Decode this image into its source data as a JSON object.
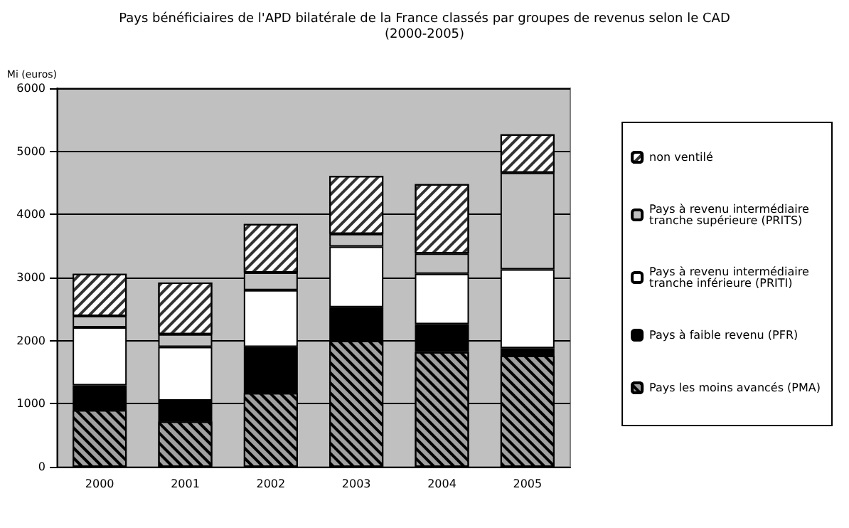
{
  "chart_data": {
    "type": "bar",
    "stacked": true,
    "title": "Pays bénéficiaires de l'APD bilatérale de la France classés par groupes de revenus selon le CAD",
    "subtitle": "(2000-2005)",
    "ylabel": "Mi (euros)",
    "categories": [
      "2000",
      "2001",
      "2002",
      "2003",
      "2004",
      "2005"
    ],
    "series": [
      {
        "name": "Pays les moins avancés (PMA)",
        "color": "#a0a0a0",
        "values": [
          900,
          720,
          1170,
          2000,
          1820,
          1760
        ]
      },
      {
        "name": "Pays à faible revenu (PFR)",
        "color": "#000000",
        "values": [
          390,
          330,
          730,
          530,
          440,
          120
        ]
      },
      {
        "name": "Pays à revenu intermédiaire tranche inférieure (PRITI)",
        "color": "#ffffff",
        "values": [
          920,
          850,
          900,
          960,
          800,
          1250
        ]
      },
      {
        "name": "Pays à revenu intermédiaire tranche supérieure (PRITS)",
        "color": "#c0c0c0",
        "values": [
          180,
          200,
          280,
          200,
          320,
          1530
        ]
      },
      {
        "name": "non ventilé",
        "color": "#ffffff",
        "values": [
          670,
          820,
          770,
          920,
          1100,
          610
        ]
      }
    ],
    "ylim": [
      0,
      6000
    ],
    "yticks": [
      0,
      1000,
      2000,
      3000,
      4000,
      5000,
      6000
    ],
    "grid": "y",
    "legend": "right"
  }
}
